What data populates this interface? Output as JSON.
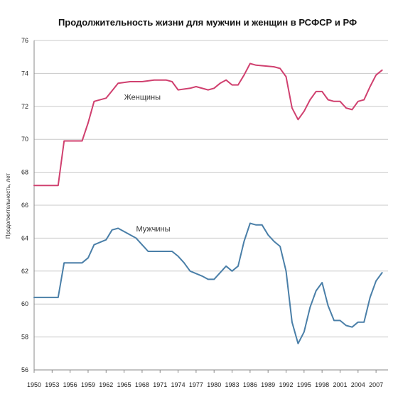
{
  "chart_data": {
    "type": "line",
    "title": "Продолжительность жизни для мужчин и женщин в РСФСР и РФ",
    "xlabel": "",
    "ylabel": "Продолжительность, лет",
    "ylim": [
      56,
      76
    ],
    "yticks": [
      56,
      58,
      60,
      62,
      64,
      66,
      68,
      70,
      72,
      74,
      76
    ],
    "xlim": [
      1950,
      2009
    ],
    "xticks": [
      1950,
      1953,
      1956,
      1959,
      1962,
      1965,
      1968,
      1971,
      1974,
      1977,
      1980,
      1983,
      1986,
      1989,
      1992,
      1995,
      1998,
      2001,
      2004,
      2007
    ],
    "grid": true,
    "series": [
      {
        "name": "Женщины",
        "color": "#d0406f",
        "label_at": [
          1965,
          72.4
        ],
        "points": [
          [
            1950,
            67.2
          ],
          [
            1954,
            67.2
          ],
          [
            1955,
            69.9
          ],
          [
            1958,
            69.9
          ],
          [
            1959,
            71.0
          ],
          [
            1960,
            72.3
          ],
          [
            1962,
            72.5
          ],
          [
            1964,
            73.4
          ],
          [
            1966,
            73.5
          ],
          [
            1968,
            73.5
          ],
          [
            1970,
            73.6
          ],
          [
            1972,
            73.6
          ],
          [
            1973,
            73.5
          ],
          [
            1974,
            73.0
          ],
          [
            1976,
            73.1
          ],
          [
            1977,
            73.2
          ],
          [
            1979,
            73.0
          ],
          [
            1980,
            73.1
          ],
          [
            1981,
            73.4
          ],
          [
            1982,
            73.6
          ],
          [
            1983,
            73.3
          ],
          [
            1984,
            73.3
          ],
          [
            1985,
            73.9
          ],
          [
            1986,
            74.6
          ],
          [
            1987,
            74.5
          ],
          [
            1990,
            74.4
          ],
          [
            1991,
            74.3
          ],
          [
            1992,
            73.8
          ],
          [
            1993,
            71.9
          ],
          [
            1994,
            71.2
          ],
          [
            1995,
            71.7
          ],
          [
            1996,
            72.4
          ],
          [
            1997,
            72.9
          ],
          [
            1998,
            72.9
          ],
          [
            1999,
            72.4
          ],
          [
            2000,
            72.3
          ],
          [
            2001,
            72.3
          ],
          [
            2002,
            71.9
          ],
          [
            2003,
            71.8
          ],
          [
            2004,
            72.3
          ],
          [
            2005,
            72.4
          ],
          [
            2006,
            73.2
          ],
          [
            2007,
            73.9
          ],
          [
            2008,
            74.2
          ]
        ]
      },
      {
        "name": "Мужчины",
        "color": "#4a7fa8",
        "label_at": [
          1967,
          64.4
        ],
        "points": [
          [
            1950,
            60.4
          ],
          [
            1954,
            60.4
          ],
          [
            1955,
            62.5
          ],
          [
            1958,
            62.5
          ],
          [
            1959,
            62.8
          ],
          [
            1960,
            63.6
          ],
          [
            1962,
            63.9
          ],
          [
            1963,
            64.5
          ],
          [
            1964,
            64.6
          ],
          [
            1966,
            64.2
          ],
          [
            1967,
            64.0
          ],
          [
            1968,
            63.6
          ],
          [
            1969,
            63.2
          ],
          [
            1970,
            63.2
          ],
          [
            1973,
            63.2
          ],
          [
            1974,
            62.9
          ],
          [
            1975,
            62.5
          ],
          [
            1976,
            62.0
          ],
          [
            1978,
            61.7
          ],
          [
            1979,
            61.5
          ],
          [
            1980,
            61.5
          ],
          [
            1981,
            61.9
          ],
          [
            1982,
            62.3
          ],
          [
            1983,
            62.0
          ],
          [
            1984,
            62.3
          ],
          [
            1985,
            63.8
          ],
          [
            1986,
            64.9
          ],
          [
            1987,
            64.8
          ],
          [
            1988,
            64.8
          ],
          [
            1989,
            64.2
          ],
          [
            1990,
            63.8
          ],
          [
            1991,
            63.5
          ],
          [
            1992,
            62.0
          ],
          [
            1993,
            58.9
          ],
          [
            1994,
            57.6
          ],
          [
            1995,
            58.3
          ],
          [
            1996,
            59.8
          ],
          [
            1997,
            60.8
          ],
          [
            1998,
            61.3
          ],
          [
            1999,
            59.9
          ],
          [
            2000,
            59.0
          ],
          [
            2001,
            59.0
          ],
          [
            2002,
            58.7
          ],
          [
            2003,
            58.6
          ],
          [
            2004,
            58.9
          ],
          [
            2005,
            58.9
          ],
          [
            2006,
            60.4
          ],
          [
            2007,
            61.4
          ],
          [
            2008,
            61.9
          ]
        ]
      }
    ]
  }
}
